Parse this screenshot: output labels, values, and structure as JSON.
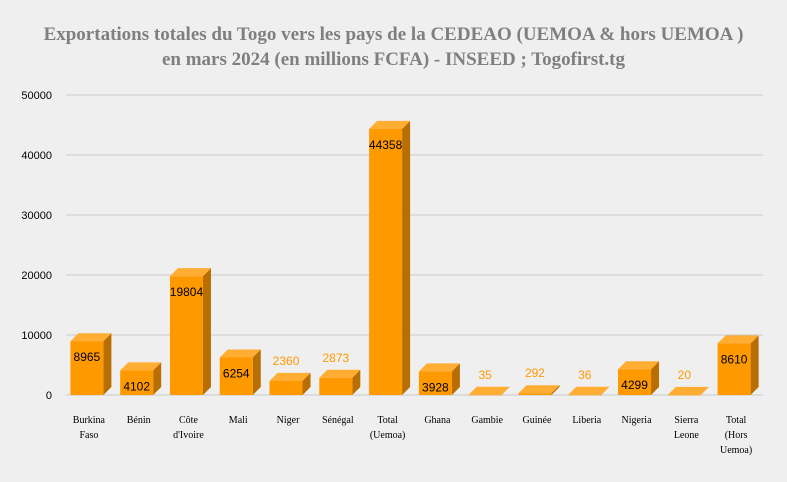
{
  "chart_data": {
    "type": "bar",
    "title_lines": [
      "Exportations totales du Togo vers les pays de la CEDEAO (UEMOA & hors UEMOA )",
      "en mars 2024 (en millions FCFA) - INSEED ; Togofirst.tg"
    ],
    "categories": [
      [
        "Burkina",
        "Faso"
      ],
      [
        "Bénin"
      ],
      [
        "Côte",
        "d'Ivoire"
      ],
      [
        "Mali"
      ],
      [
        "Niger"
      ],
      [
        "Sénégal"
      ],
      [
        "Total",
        "(Uemoa)"
      ],
      [
        "Ghana"
      ],
      [
        "Gambie"
      ],
      [
        "Guinée"
      ],
      [
        "Liberia"
      ],
      [
        "Nigeria"
      ],
      [
        "Sierra",
        "Leone"
      ],
      [
        "Total",
        "(Hors",
        "Uemoa)"
      ]
    ],
    "values": [
      8965,
      4102,
      19804,
      6254,
      2360,
      2873,
      44358,
      3928,
      35,
      292,
      36,
      4299,
      20,
      8610
    ],
    "ylim": [
      0,
      50000
    ],
    "yticks": [
      0,
      10000,
      20000,
      30000,
      40000,
      50000
    ],
    "grid": true,
    "xlabel": "",
    "ylabel": "",
    "colors": {
      "bar_front": "#ff9900",
      "bar_side": "#b86e00",
      "bar_top": "#ffad33",
      "label_inside": "#000000",
      "label_outside": "#ff9900",
      "grid": "#c8c8c8",
      "axis_text": "#000000",
      "title": "#7f7f7f",
      "background": "#efefef"
    }
  }
}
